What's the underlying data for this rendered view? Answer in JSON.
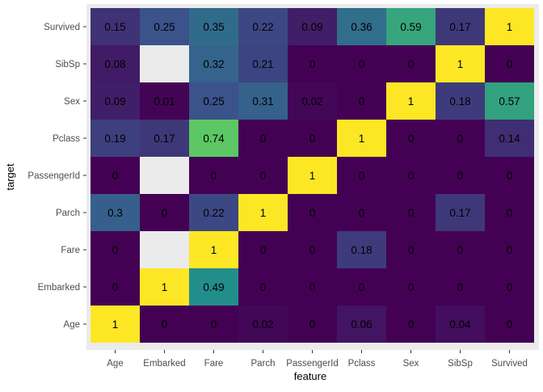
{
  "chart_data": {
    "type": "heatmap",
    "xlabel": "feature",
    "ylabel": "target",
    "x_categories": [
      "Age",
      "Embarked",
      "Fare",
      "Parch",
      "PassengerId",
      "Pclass",
      "Sex",
      "SibSp",
      "Survived"
    ],
    "y_categories": [
      "Survived",
      "SibSp",
      "Sex",
      "Pclass",
      "PassengerId",
      "Parch",
      "Fare",
      "Embarked",
      "Age"
    ],
    "values": [
      [
        0.15,
        0.25,
        0.35,
        0.22,
        0.09,
        0.36,
        0.59,
        0.17,
        1
      ],
      [
        0.08,
        null,
        0.32,
        0.21,
        0,
        0,
        0,
        1,
        0
      ],
      [
        0.09,
        0.01,
        0.25,
        0.31,
        0.02,
        0,
        1,
        0.18,
        0.57
      ],
      [
        0.19,
        0.17,
        0.74,
        0,
        0,
        1,
        0,
        0,
        0.14
      ],
      [
        0,
        null,
        0,
        0,
        1,
        0,
        0,
        0,
        0
      ],
      [
        0.3,
        0,
        0.22,
        1,
        0,
        0,
        0,
        0.17,
        0
      ],
      [
        0,
        null,
        1,
        0,
        0,
        0.18,
        0,
        0,
        0
      ],
      [
        0,
        1,
        0.49,
        0,
        0,
        0,
        0,
        0,
        0
      ],
      [
        1,
        0,
        0,
        0.02,
        0,
        0.06,
        0,
        0.04,
        0
      ]
    ],
    "colorscale": "viridis",
    "value_range": [
      0,
      1
    ],
    "missing_color": "#EBEBEB",
    "panel_background": "#EBEBEB",
    "legend": "none",
    "grid": false
  }
}
